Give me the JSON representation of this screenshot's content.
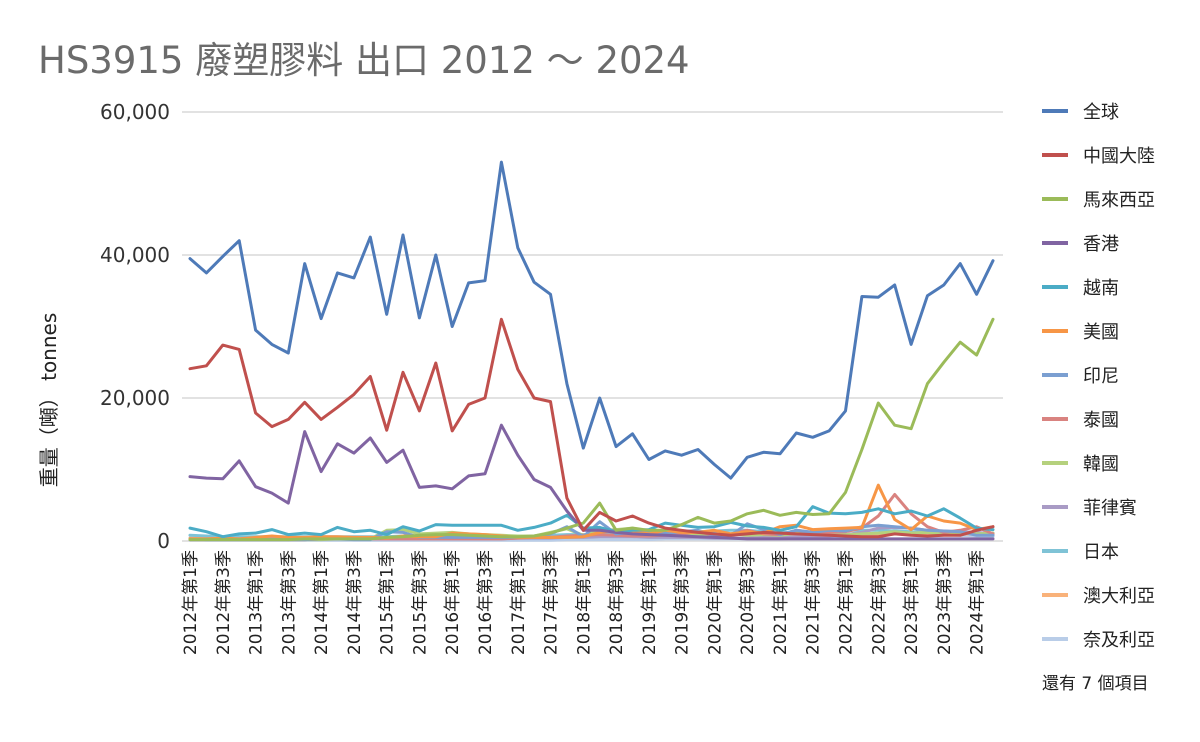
{
  "chart_data": {
    "type": "line",
    "title": "HS3915 廢塑膠料 出口 2012 ～ 2024",
    "ylabel": "重量（噸） tonnes",
    "ylim": [
      0,
      60000
    ],
    "yticks": [
      0,
      20000,
      40000,
      60000
    ],
    "ytick_labels": [
      "0",
      "20,000",
      "40,000",
      "60,000"
    ],
    "grid": "horizontal",
    "legend_position": "right",
    "legend_more": "還有 7 個項目",
    "x": [
      "2012年第1季",
      "2012年第2季",
      "2012年第3季",
      "2012年第4季",
      "2013年第1季",
      "2013年第2季",
      "2013年第3季",
      "2013年第4季",
      "2014年第1季",
      "2014年第2季",
      "2014年第3季",
      "2014年第4季",
      "2015年第1季",
      "2015年第2季",
      "2015年第3季",
      "2015年第4季",
      "2016年第1季",
      "2016年第2季",
      "2016年第3季",
      "2016年第4季",
      "2017年第1季",
      "2017年第2季",
      "2017年第3季",
      "2017年第4季",
      "2018年第1季",
      "2018年第2季",
      "2018年第3季",
      "2018年第4季",
      "2019年第1季",
      "2019年第2季",
      "2019年第3季",
      "2019年第4季",
      "2020年第1季",
      "2020年第2季",
      "2020年第3季",
      "2020年第4季",
      "2021年第1季",
      "2021年第2季",
      "2021年第3季",
      "2021年第4季",
      "2022年第1季",
      "2022年第2季",
      "2022年第3季",
      "2022年第4季",
      "2023年第1季",
      "2023年第2季",
      "2023年第3季",
      "2023年第4季",
      "2024年第1季",
      "2024年第2季"
    ],
    "x_tick_labels": [
      "2012年第1季",
      "2012年第3季",
      "2013年第1季",
      "2013年第3季",
      "2014年第1季",
      "2014年第3季",
      "2015年第1季",
      "2015年第3季",
      "2016年第1季",
      "2016年第3季",
      "2017年第1季",
      "2017年第3季",
      "2018年第1季",
      "2018年第3季",
      "2019年第1季",
      "2019年第3季",
      "2020年第1季",
      "2020年第3季",
      "2021年第1季",
      "2021年第3季",
      "2022年第1季",
      "2022年第3季",
      "2023年第1季",
      "2023年第3季",
      "2024年第1季"
    ],
    "series": [
      {
        "name": "全球",
        "color": "#4e7ab8",
        "values": [
          39500,
          37500,
          39800,
          42000,
          29500,
          27500,
          26300,
          38800,
          31100,
          37500,
          36800,
          42500,
          31700,
          42800,
          31200,
          40000,
          30000,
          36100,
          36400,
          53000,
          41000,
          36200,
          34500,
          22000,
          13000,
          20000,
          13200,
          15000,
          11400,
          12600,
          12000,
          12800,
          10700,
          8800,
          11700,
          12400,
          12200,
          15100,
          14500,
          15400,
          18200,
          34200,
          34100,
          35800,
          27500,
          34300,
          35800,
          38800,
          34500,
          39200
        ]
      },
      {
        "name": "中國大陸",
        "color": "#c0504d",
        "values": [
          24100,
          24500,
          27400,
          26800,
          17900,
          16000,
          17000,
          19400,
          17000,
          18700,
          20500,
          23000,
          15500,
          23600,
          18200,
          24900,
          15400,
          19100,
          20000,
          31000,
          24000,
          20000,
          19500,
          6000,
          1500,
          4000,
          2800,
          3500,
          2500,
          1800,
          1500,
          1200,
          1000,
          800,
          1000,
          1200,
          1100,
          1000,
          900,
          800,
          700,
          600,
          600,
          1000,
          800,
          700,
          800,
          800,
          1500,
          2000
        ]
      },
      {
        "name": "馬來西亞",
        "color": "#9bbb59",
        "values": [
          200,
          200,
          200,
          200,
          200,
          200,
          200,
          300,
          300,
          300,
          300,
          300,
          500,
          600,
          800,
          900,
          900,
          800,
          700,
          600,
          600,
          700,
          1100,
          1800,
          2500,
          5300,
          1500,
          1800,
          1500,
          1500,
          2300,
          3300,
          2500,
          2800,
          3800,
          4300,
          3600,
          4000,
          3700,
          3800,
          6800,
          12800,
          19300,
          16200,
          15700,
          22000,
          25000,
          27800,
          26000,
          31000
        ]
      },
      {
        "name": "香港",
        "color": "#8064a2",
        "values": [
          9000,
          8800,
          8700,
          11200,
          7600,
          6700,
          5300,
          15300,
          9700,
          13600,
          12300,
          14400,
          11000,
          12700,
          7500,
          7700,
          7300,
          9100,
          9400,
          16200,
          12000,
          8600,
          7500,
          4200,
          1500,
          1500,
          1200,
          1000,
          900,
          800,
          700,
          600,
          500,
          400,
          300,
          300,
          300,
          300,
          300,
          300,
          300,
          300,
          300,
          300,
          300,
          300,
          300,
          300,
          300,
          300
        ]
      },
      {
        "name": "越南",
        "color": "#4bacc6",
        "values": [
          1800,
          1300,
          600,
          1000,
          1100,
          1600,
          900,
          1100,
          900,
          1900,
          1300,
          1500,
          900,
          2000,
          1400,
          2300,
          2200,
          2200,
          2200,
          2200,
          1500,
          1900,
          2500,
          3600,
          1800,
          1900,
          1300,
          1500,
          1600,
          2500,
          2200,
          1900,
          2000,
          2600,
          2100,
          1900,
          1500,
          2000,
          4800,
          3900,
          3800,
          4000,
          4500,
          3800,
          4200,
          3500,
          4500,
          3200,
          1800,
          1600
        ]
      },
      {
        "name": "美國",
        "color": "#f79646",
        "values": [
          300,
          300,
          400,
          300,
          500,
          700,
          500,
          500,
          600,
          600,
          500,
          500,
          400,
          700,
          600,
          600,
          1100,
          1000,
          900,
          700,
          500,
          500,
          500,
          500,
          600,
          1200,
          1500,
          1400,
          1000,
          1500,
          1200,
          1200,
          1500,
          1000,
          1300,
          1100,
          2000,
          2200,
          1600,
          1700,
          1800,
          1900,
          7800,
          3000,
          1600,
          3500,
          2800,
          2500,
          1600,
          2000
        ]
      },
      {
        "name": "印尼",
        "color": "#7b9fd1",
        "values": [
          300,
          200,
          200,
          200,
          200,
          200,
          200,
          200,
          300,
          300,
          200,
          200,
          1300,
          1200,
          500,
          500,
          500,
          500,
          500,
          500,
          500,
          500,
          1000,
          2000,
          600,
          2700,
          1000,
          1200,
          1200,
          1100,
          1300,
          1500,
          800,
          800,
          2400,
          1600,
          900,
          1500,
          1200,
          1500,
          1400,
          2000,
          2200,
          2000,
          1800,
          1500,
          1400,
          1300,
          800,
          800
        ]
      },
      {
        "name": "泰國",
        "color": "#d98380",
        "values": [
          200,
          200,
          200,
          200,
          200,
          200,
          200,
          200,
          300,
          300,
          300,
          300,
          300,
          300,
          300,
          300,
          300,
          300,
          300,
          300,
          400,
          500,
          500,
          700,
          800,
          900,
          800,
          700,
          700,
          800,
          1000,
          1300,
          800,
          1000,
          1500,
          1000,
          900,
          1500,
          1200,
          1200,
          1300,
          1800,
          3500,
          6500,
          3800,
          2000,
          1200,
          1500,
          2000,
          1000
        ]
      },
      {
        "name": "韓國",
        "color": "#b5d17d",
        "values": [
          200,
          200,
          200,
          200,
          200,
          200,
          200,
          200,
          200,
          300,
          300,
          300,
          1500,
          1600,
          1000,
          1100,
          1200,
          1000,
          900,
          800,
          700,
          700,
          1200,
          1700,
          800,
          1500,
          1600,
          1800,
          1300,
          1000,
          900,
          1000,
          900,
          1000,
          800,
          900,
          800,
          1100,
          900,
          1000,
          900,
          1000,
          1100,
          1300,
          1100,
          1200,
          1000,
          1100,
          1000,
          1100
        ]
      },
      {
        "name": "菲律賓",
        "color": "#a99bc5",
        "values": [
          300,
          300,
          300,
          300,
          300,
          300,
          300,
          300,
          300,
          300,
          300,
          300,
          300,
          300,
          300,
          300,
          300,
          300,
          300,
          300,
          400,
          400,
          400,
          500,
          500,
          600,
          600,
          600,
          500,
          500,
          500,
          500,
          400,
          400,
          400,
          500,
          500,
          600,
          600,
          700,
          900,
          1200,
          1800,
          1900,
          1800,
          1500,
          1400,
          1300,
          1200,
          1000
        ]
      },
      {
        "name": "日本",
        "color": "#7fc3d6",
        "values": [
          800,
          700,
          600,
          600,
          600,
          600,
          600,
          600,
          600,
          600,
          600,
          600,
          600,
          700,
          700,
          700,
          700,
          700,
          700,
          700,
          700,
          700,
          800,
          900,
          900,
          1000,
          900,
          900,
          1000,
          1100,
          1200,
          1300,
          1400,
          1500,
          1500,
          1300,
          1200,
          1200,
          1300,
          1400,
          1500,
          1500,
          1500,
          1400,
          1300,
          1200,
          1200,
          1100,
          1000,
          1100
        ]
      },
      {
        "name": "澳大利亞",
        "color": "#f9b27a",
        "values": [
          400,
          400,
          400,
          400,
          500,
          500,
          500,
          500,
          500,
          500,
          500,
          500,
          500,
          500,
          500,
          500,
          600,
          600,
          600,
          600,
          600,
          700,
          700,
          700,
          700,
          800,
          800,
          800,
          800,
          900,
          900,
          900,
          900,
          900,
          900,
          900,
          900,
          900,
          900,
          900,
          900,
          1000,
          1000,
          1000,
          1000,
          1000,
          1000,
          1000,
          1000,
          1000
        ]
      },
      {
        "name": "奈及利亞",
        "color": "#b9cde8",
        "values": [
          100,
          100,
          100,
          100,
          100,
          100,
          100,
          100,
          100,
          100,
          100,
          100,
          100,
          100,
          100,
          100,
          100,
          100,
          100,
          100,
          100,
          100,
          100,
          200,
          200,
          200,
          200,
          200,
          200,
          300,
          300,
          300,
          300,
          300,
          300,
          300,
          300,
          400,
          400,
          500,
          600,
          800,
          1000,
          1500,
          1200,
          1000,
          900,
          800,
          700,
          600
        ]
      }
    ]
  }
}
